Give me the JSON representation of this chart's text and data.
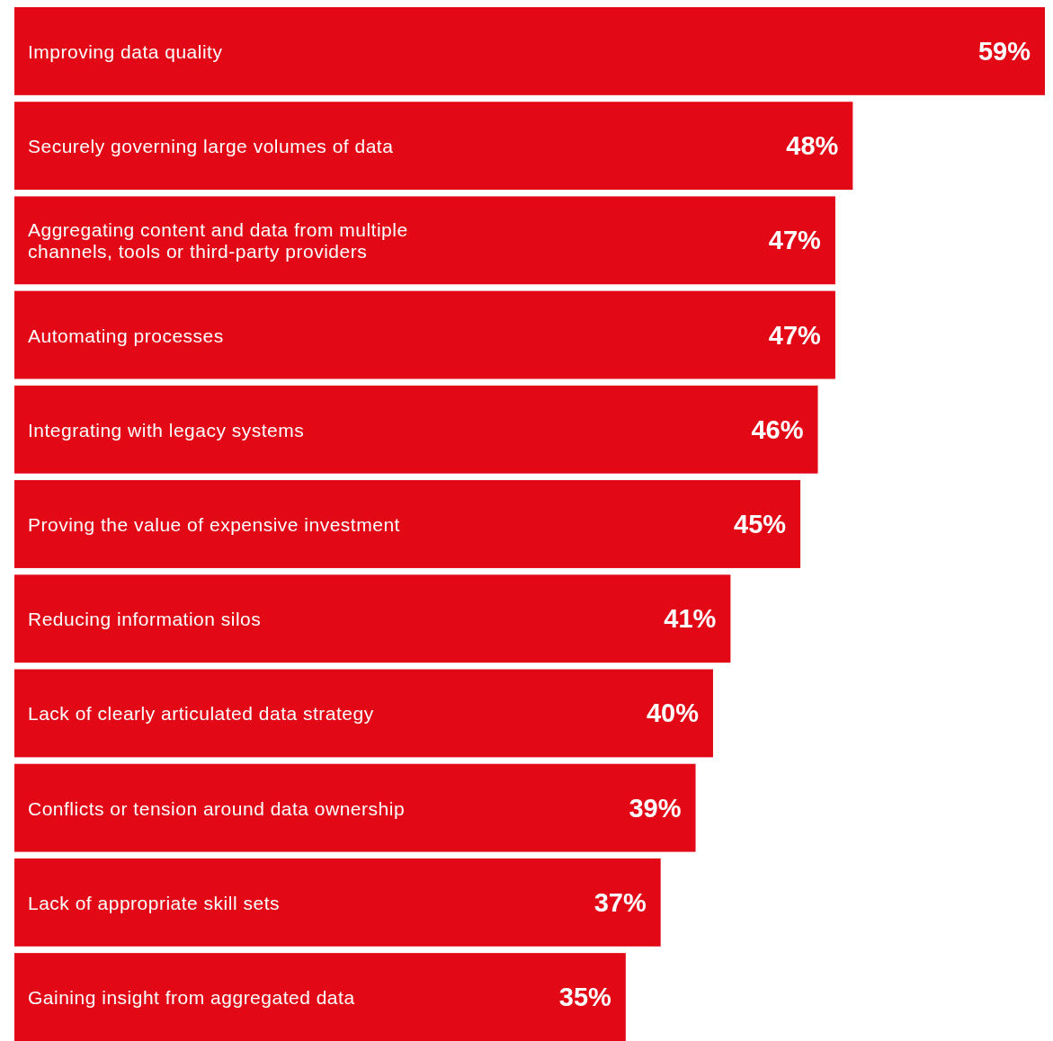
{
  "chart_data": {
    "type": "bar",
    "orientation": "horizontal",
    "categories": [
      "Improving data quality",
      "Securely governing large volumes of data",
      "Aggregating content and data from multiple channels, tools or third-party providers",
      "Automating processes",
      "Integrating with legacy systems",
      "Proving the value of expensive investment",
      "Reducing information silos",
      "Lack of clearly articulated data strategy",
      "Conflicts or tension around data ownership",
      "Lack of appropriate skill sets",
      "Gaining insight from aggregated data"
    ],
    "values": [
      59,
      48,
      47,
      47,
      46,
      45,
      41,
      40,
      39,
      37,
      35
    ],
    "value_labels": [
      "59%",
      "48%",
      "47%",
      "47%",
      "46%",
      "45%",
      "41%",
      "40%",
      "39%",
      "37%",
      "35%"
    ],
    "color": "#e20815"
  }
}
